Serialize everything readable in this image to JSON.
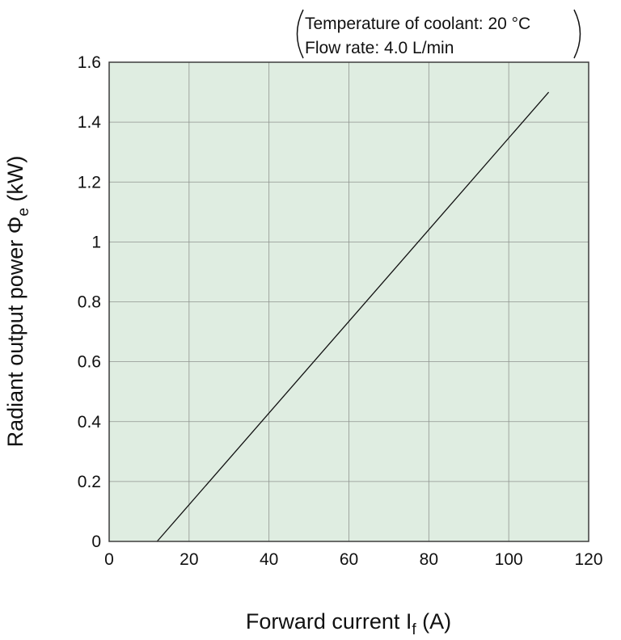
{
  "chart_data": {
    "type": "line",
    "xlabel_main": "Forward current I",
    "xlabel_sub": "f",
    "xlabel_unit": " (A)",
    "ylabel_main": "Radiant output power Φ",
    "ylabel_sub": "e",
    "ylabel_unit": " (kW)",
    "xlim": [
      0,
      120
    ],
    "ylim": [
      0,
      1.6
    ],
    "x_ticks": [
      0,
      20,
      40,
      60,
      80,
      100,
      120
    ],
    "x_tick_labels": [
      "0",
      "20",
      "40",
      "60",
      "80",
      "100",
      "120"
    ],
    "y_ticks": [
      0,
      0.2,
      0.4,
      0.6,
      0.8,
      1.0,
      1.2,
      1.4,
      1.6
    ],
    "y_tick_labels": [
      "0",
      "0.2",
      "0.4",
      "0.6",
      "0.8",
      "1",
      "1.2",
      "1.4",
      "1.6"
    ],
    "grid": true,
    "series": [
      {
        "x": [
          12,
          110
        ],
        "y": [
          0,
          1.5
        ]
      }
    ],
    "annotations": {
      "line1": "Temperature of coolant: 20 °C",
      "line2": "Flow rate: 4.0 L/min"
    },
    "colors": {
      "plot_background": "#dfede1",
      "grid": "#8f948f",
      "frame": "#3d3d3d",
      "series_line": "#111111",
      "text": "#111111"
    }
  }
}
